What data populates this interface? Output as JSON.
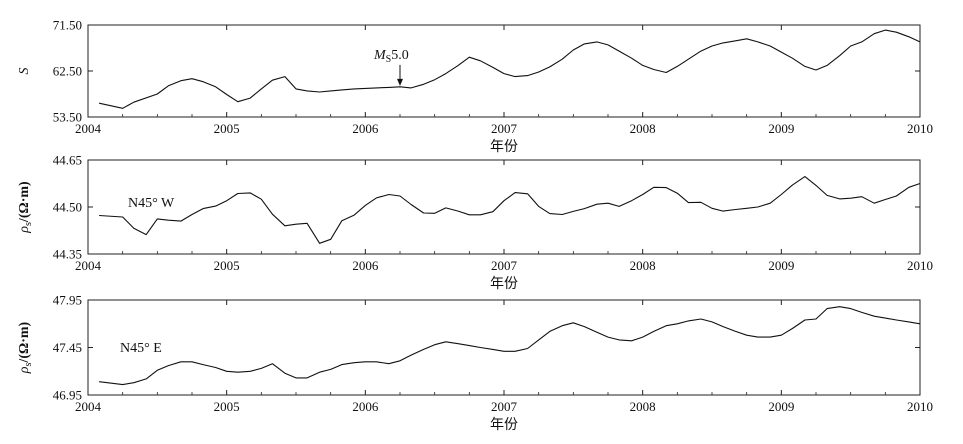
{
  "chart_data": [
    {
      "type": "line",
      "ylabel": "S",
      "xlabel": "年份",
      "xlim": [
        2004,
        2010
      ],
      "ylim": [
        53.5,
        71.5
      ],
      "x_ticks": [
        2004,
        2005,
        2006,
        2007,
        2008,
        2009,
        2010
      ],
      "x_tick_labels": [
        "2004",
        "2005",
        "2006",
        "2007",
        "2008",
        "2009",
        "2010"
      ],
      "y_ticks": [
        53.5,
        62.5,
        71.5
      ],
      "y_tick_labels": [
        "53.50",
        "62.50",
        "71.50"
      ],
      "grid": false,
      "annotation": {
        "prefix": "M",
        "sub": "S",
        "value": "5.0",
        "x": 2006.25,
        "y": 59.4
      },
      "series": [
        {
          "x": [
            2004.08,
            2004.25,
            2004.33,
            2004.5,
            2004.58,
            2004.67,
            2004.75,
            2004.83,
            2004.92,
            2005.0,
            2005.08,
            2005.17,
            2005.25,
            2005.33,
            2005.42,
            2005.5,
            2005.58,
            2005.67,
            2005.75,
            2005.83,
            2005.92,
            2006.0,
            2006.08,
            2006.17,
            2006.25,
            2006.33,
            2006.42,
            2006.5,
            2006.58,
            2006.67,
            2006.75,
            2006.83,
            2006.92,
            2007.0,
            2007.08,
            2007.17,
            2007.25,
            2007.33,
            2007.42,
            2007.5,
            2007.58,
            2007.67,
            2007.75,
            2007.83,
            2007.92,
            2008.0,
            2008.08,
            2008.17,
            2008.25,
            2008.33,
            2008.42,
            2008.5,
            2008.58,
            2008.67,
            2008.75,
            2008.83,
            2008.92,
            2009.0,
            2009.08,
            2009.17,
            2009.25,
            2009.33,
            2009.42,
            2009.5,
            2009.58,
            2009.67,
            2009.75,
            2009.83,
            2009.92,
            2010.0
          ],
          "y": [
            56.2,
            55.2,
            56.4,
            58.0,
            59.6,
            60.6,
            61.0,
            60.4,
            59.4,
            57.9,
            56.5,
            57.2,
            59.0,
            60.7,
            61.4,
            59.0,
            58.6,
            58.4,
            58.6,
            58.8,
            59.0,
            59.1,
            59.2,
            59.3,
            59.4,
            59.2,
            59.9,
            60.8,
            62.0,
            63.6,
            65.2,
            64.5,
            63.2,
            62.0,
            61.4,
            61.6,
            62.3,
            63.3,
            64.8,
            66.6,
            67.8,
            68.2,
            67.6,
            66.4,
            65.0,
            63.6,
            62.8,
            62.2,
            63.4,
            64.8,
            66.4,
            67.4,
            68.0,
            68.4,
            68.8,
            68.2,
            67.4,
            66.2,
            65.0,
            63.4,
            62.7,
            63.6,
            65.5,
            67.4,
            68.2,
            69.8,
            70.5,
            70.1,
            69.2,
            68.2
          ]
        }
      ]
    },
    {
      "type": "line",
      "ylabel": {
        "symbol": "ρ",
        "sub": "s",
        "unit": "/(Ω·m)"
      },
      "xlabel": "年份",
      "xlim": [
        2004,
        2010
      ],
      "ylim": [
        44.35,
        44.65
      ],
      "x_ticks": [
        2004,
        2005,
        2006,
        2007,
        2008,
        2009,
        2010
      ],
      "x_tick_labels": [
        "2004",
        "2005",
        "2006",
        "2007",
        "2008",
        "2009",
        "2010"
      ],
      "y_ticks": [
        44.35,
        44.5,
        44.65
      ],
      "y_tick_labels": [
        "44.35",
        "44.50",
        "44.65"
      ],
      "grid": false,
      "series_label": "N45° W",
      "series": [
        {
          "x": [
            2004.08,
            2004.25,
            2004.33,
            2004.42,
            2004.5,
            2004.58,
            2004.67,
            2004.75,
            2004.83,
            2004.92,
            2005.0,
            2005.08,
            2005.17,
            2005.25,
            2005.33,
            2005.42,
            2005.5,
            2005.58,
            2005.67,
            2005.75,
            2005.83,
            2005.92,
            2006.0,
            2006.08,
            2006.17,
            2006.25,
            2006.33,
            2006.42,
            2006.5,
            2006.58,
            2006.67,
            2006.75,
            2006.83,
            2006.92,
            2007.0,
            2007.08,
            2007.17,
            2007.25,
            2007.33,
            2007.42,
            2007.5,
            2007.58,
            2007.67,
            2007.75,
            2007.83,
            2007.92,
            2008.0,
            2008.08,
            2008.17,
            2008.25,
            2008.33,
            2008.42,
            2008.5,
            2008.58,
            2008.67,
            2008.75,
            2008.83,
            2008.92,
            2009.0,
            2009.08,
            2009.17,
            2009.25,
            2009.33,
            2009.42,
            2009.5,
            2009.58,
            2009.67,
            2009.75,
            2009.83,
            2009.92,
            2010.0
          ],
          "y": [
            44.473,
            44.468,
            44.432,
            44.412,
            44.462,
            44.458,
            44.455,
            44.476,
            44.495,
            44.503,
            44.52,
            44.543,
            44.545,
            44.525,
            44.477,
            44.44,
            44.445,
            44.448,
            44.384,
            44.397,
            44.456,
            44.474,
            44.505,
            44.529,
            44.54,
            44.535,
            44.508,
            44.481,
            44.48,
            44.497,
            44.487,
            44.475,
            44.475,
            44.485,
            44.52,
            44.546,
            44.542,
            44.502,
            44.479,
            44.476,
            44.486,
            44.495,
            44.509,
            44.512,
            44.502,
            44.52,
            44.54,
            44.563,
            44.562,
            44.544,
            44.514,
            44.515,
            44.496,
            44.487,
            44.492,
            44.496,
            44.5,
            44.512,
            44.54,
            44.57,
            44.597,
            44.569,
            44.537,
            44.526,
            44.528,
            44.533,
            44.512,
            44.524,
            44.535,
            44.563,
            44.575
          ]
        }
      ]
    },
    {
      "type": "line",
      "ylabel": {
        "symbol": "ρ",
        "sub": "s",
        "unit": "/(Ω·m)"
      },
      "xlabel": "年份",
      "xlim": [
        2004,
        2010
      ],
      "ylim": [
        46.95,
        47.95
      ],
      "x_ticks": [
        2004,
        2005,
        2006,
        2007,
        2008,
        2009,
        2010
      ],
      "x_tick_labels": [
        "2004",
        "2005",
        "2006",
        "2007",
        "2008",
        "2009",
        "2010"
      ],
      "y_ticks": [
        46.95,
        47.45,
        47.95
      ],
      "y_tick_labels": [
        "46.95",
        "47.45",
        "47.95"
      ],
      "grid": false,
      "series_label": "N45° E",
      "series": [
        {
          "x": [
            2004.08,
            2004.25,
            2004.33,
            2004.42,
            2004.5,
            2004.58,
            2004.67,
            2004.75,
            2004.83,
            2004.92,
            2005.0,
            2005.08,
            2005.17,
            2005.25,
            2005.33,
            2005.42,
            2005.5,
            2005.58,
            2005.67,
            2005.75,
            2005.83,
            2005.92,
            2006.0,
            2006.08,
            2006.17,
            2006.25,
            2006.33,
            2006.42,
            2006.5,
            2006.58,
            2006.67,
            2006.75,
            2006.83,
            2006.92,
            2007.0,
            2007.08,
            2007.17,
            2007.25,
            2007.33,
            2007.42,
            2007.5,
            2007.58,
            2007.67,
            2007.75,
            2007.83,
            2007.92,
            2008.0,
            2008.08,
            2008.17,
            2008.25,
            2008.33,
            2008.42,
            2008.5,
            2008.58,
            2008.67,
            2008.75,
            2008.83,
            2008.92,
            2009.0,
            2009.08,
            2009.17,
            2009.25,
            2009.33,
            2009.42,
            2009.5,
            2009.58,
            2009.67,
            2009.75,
            2009.83,
            2009.92,
            2010.0
          ],
          "y": [
            47.09,
            47.06,
            47.08,
            47.12,
            47.21,
            47.26,
            47.3,
            47.3,
            47.27,
            47.24,
            47.2,
            47.19,
            47.2,
            47.23,
            47.28,
            47.18,
            47.13,
            47.13,
            47.19,
            47.22,
            47.27,
            47.29,
            47.3,
            47.3,
            47.28,
            47.31,
            47.37,
            47.43,
            47.48,
            47.51,
            47.49,
            47.47,
            47.45,
            47.43,
            47.41,
            47.41,
            47.44,
            47.53,
            47.62,
            47.68,
            47.71,
            47.67,
            47.61,
            47.56,
            47.53,
            47.52,
            47.56,
            47.62,
            47.68,
            47.7,
            47.73,
            47.75,
            47.72,
            47.67,
            47.62,
            47.58,
            47.56,
            47.56,
            47.58,
            47.65,
            47.74,
            47.75,
            47.86,
            47.88,
            47.86,
            47.82,
            47.78,
            47.76,
            47.74,
            47.72,
            47.7
          ]
        }
      ]
    }
  ]
}
